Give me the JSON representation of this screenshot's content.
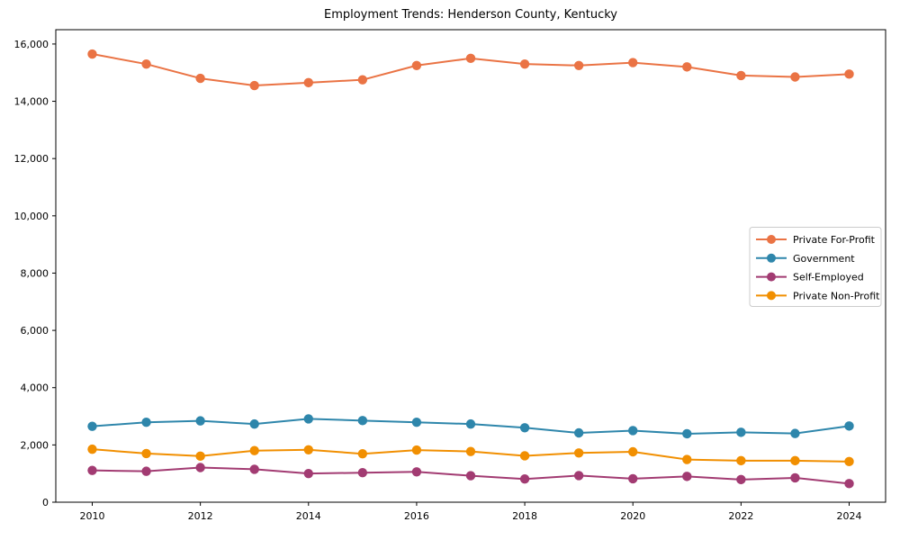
{
  "figure": {
    "title": "Employment Trends: Henderson County, Kentucky"
  },
  "chart_data": {
    "type": "line",
    "title": "Employment Trends: Henderson County, Kentucky",
    "xlabel": "",
    "ylabel": "",
    "x": [
      2010,
      2011,
      2012,
      2013,
      2014,
      2015,
      2016,
      2017,
      2018,
      2019,
      2020,
      2021,
      2022,
      2023,
      2024
    ],
    "series": [
      {
        "name": "Private For-Profit",
        "color": "#EA7344",
        "values": [
          15650,
          15300,
          14800,
          14550,
          14650,
          14750,
          15250,
          15500,
          15300,
          15250,
          15350,
          15200,
          14900,
          14850,
          14950
        ]
      },
      {
        "name": "Government",
        "color": "#2E86AB",
        "values": [
          2650,
          2790,
          2840,
          2730,
          2910,
          2850,
          2790,
          2730,
          2600,
          2420,
          2500,
          2390,
          2440,
          2400,
          2660
        ]
      },
      {
        "name": "Self-Employed",
        "color": "#A23B72",
        "values": [
          1110,
          1080,
          1210,
          1150,
          1000,
          1030,
          1060,
          925,
          810,
          930,
          820,
          900,
          790,
          850,
          650
        ]
      },
      {
        "name": "Private Non-Profit",
        "color": "#F18F01",
        "values": [
          1850,
          1700,
          1610,
          1800,
          1830,
          1690,
          1820,
          1770,
          1620,
          1720,
          1760,
          1490,
          1450,
          1450,
          1420
        ]
      }
    ],
    "xticks": [
      2010,
      2012,
      2014,
      2016,
      2018,
      2020,
      2022,
      2024
    ],
    "xtick_labels": [
      "2010",
      "2012",
      "2014",
      "2016",
      "2018",
      "2020",
      "2022",
      "2024"
    ],
    "yticks": [
      0,
      2000,
      4000,
      6000,
      8000,
      10000,
      12000,
      14000,
      16000
    ],
    "ytick_labels": [
      "0",
      "2,000",
      "4,000",
      "6,000",
      "8,000",
      "10,000",
      "12,000",
      "14,000",
      "16,000"
    ],
    "xlim": [
      2009.326,
      2024.674
    ],
    "ylim": [
      0,
      16500
    ],
    "grid": false,
    "legend_position": "center-right",
    "marker": "circle",
    "axis_color": "#000000",
    "legend_border_color": "#cccccc"
  }
}
